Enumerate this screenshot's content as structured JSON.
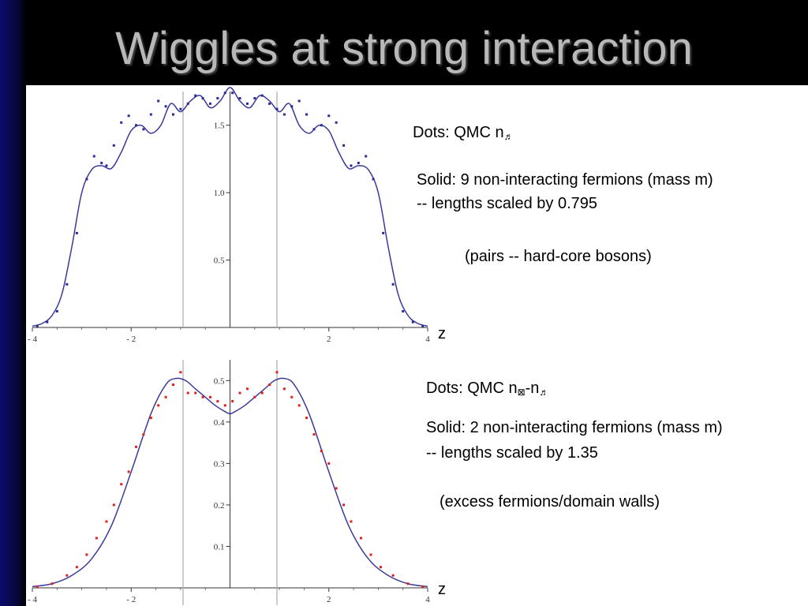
{
  "slide": {
    "title": "Wiggles at strong interaction"
  },
  "top_text": {
    "dots_prefix": "Dots: QMC n",
    "dots_symbol": "♬",
    "solid_line1": "Solid: 9 non-interacting fermions  (mass m)",
    "solid_line2": "-- lengths scaled by 0.795",
    "note": "(pairs -- hard-core bosons)",
    "axis_var": "z"
  },
  "bottom_text": {
    "dots_prefix": "Dots: QMC n",
    "dots_symbol1": "⊠",
    "dots_mid": "-n",
    "dots_symbol2": "♬",
    "solid_line1": "Solid: 2 non-interacting fermions (mass m)",
    "solid_line2": "-- lengths scaled by 1.35",
    "note": "(excess fermions/domain walls)",
    "axis_var": "z"
  },
  "chart_data": [
    {
      "type": "line",
      "xlim": [
        -4,
        4
      ],
      "ylim": [
        0,
        1.75
      ],
      "x_ticks": [
        -4,
        -2,
        2,
        4
      ],
      "x_tick_labels": [
        "- 4",
        "- 2",
        "2",
        "4"
      ],
      "y_ticks": [
        0.5,
        1.0,
        1.5
      ],
      "y_tick_labels": [
        "0.5",
        "1.0",
        "1.5"
      ],
      "vertical_lines": [
        -0.95,
        0.95
      ],
      "series": [
        {
          "style": "solid",
          "color": "#3a3a9a",
          "x": [
            -4.0,
            -3.8,
            -3.6,
            -3.4,
            -3.2,
            -3.0,
            -2.8,
            -2.6,
            -2.4,
            -2.2,
            -2.0,
            -1.8,
            -1.6,
            -1.4,
            -1.2,
            -1.0,
            -0.8,
            -0.6,
            -0.4,
            -0.2,
            0.0,
            0.2,
            0.4,
            0.6,
            0.8,
            1.0,
            1.2,
            1.4,
            1.6,
            1.8,
            2.0,
            2.2,
            2.4,
            2.6,
            2.8,
            3.0,
            3.2,
            3.4,
            3.6,
            3.8,
            4.0
          ],
          "y": [
            0.01,
            0.03,
            0.09,
            0.25,
            0.6,
            1.0,
            1.17,
            1.2,
            1.18,
            1.3,
            1.46,
            1.5,
            1.44,
            1.5,
            1.66,
            1.6,
            1.68,
            1.72,
            1.63,
            1.68,
            1.78,
            1.68,
            1.63,
            1.72,
            1.68,
            1.6,
            1.66,
            1.5,
            1.44,
            1.5,
            1.46,
            1.3,
            1.18,
            1.2,
            1.17,
            1.0,
            0.6,
            0.25,
            0.09,
            0.03,
            0.01
          ]
        },
        {
          "style": "dots",
          "color": "#2a2a9a",
          "x": [
            -3.9,
            -3.7,
            -3.5,
            -3.3,
            -3.1,
            -2.9,
            -2.75,
            -2.6,
            -2.5,
            -2.35,
            -2.2,
            -2.05,
            -1.9,
            -1.75,
            -1.6,
            -1.45,
            -1.3,
            -1.15,
            -1.0,
            -0.85,
            -0.7,
            -0.55,
            -0.4,
            -0.25,
            -0.1,
            0.05,
            0.2,
            0.35,
            0.5,
            0.65,
            0.8,
            0.95,
            1.1,
            1.25,
            1.4,
            1.55,
            1.7,
            1.85,
            2.0,
            2.15,
            2.3,
            2.45,
            2.6,
            2.75,
            2.9,
            3.1,
            3.3,
            3.5,
            3.7,
            3.9
          ],
          "y": [
            0.01,
            0.04,
            0.12,
            0.32,
            0.7,
            1.1,
            1.27,
            1.22,
            1.2,
            1.35,
            1.52,
            1.57,
            1.5,
            1.47,
            1.58,
            1.68,
            1.64,
            1.58,
            1.62,
            1.66,
            1.72,
            1.7,
            1.66,
            1.7,
            1.74,
            1.74,
            1.7,
            1.66,
            1.7,
            1.72,
            1.66,
            1.62,
            1.58,
            1.64,
            1.68,
            1.58,
            1.47,
            1.5,
            1.57,
            1.52,
            1.35,
            1.2,
            1.22,
            1.27,
            1.1,
            0.7,
            0.32,
            0.12,
            0.04,
            0.01
          ]
        }
      ]
    },
    {
      "type": "line",
      "xlim": [
        -4,
        4
      ],
      "ylim": [
        0,
        0.55
      ],
      "x_ticks": [
        -4,
        -2,
        2,
        4
      ],
      "x_tick_labels": [
        "- 4",
        "- 2",
        "2",
        "4"
      ],
      "y_ticks": [
        0.1,
        0.2,
        0.3,
        0.4,
        0.5
      ],
      "y_tick_labels": [
        "0.1",
        "0.2",
        "0.3",
        "0.4",
        "0.5"
      ],
      "vertical_lines": [
        -0.95,
        0.95
      ],
      "series": [
        {
          "style": "solid",
          "color": "#3a3a9a",
          "x": [
            -4.0,
            -3.6,
            -3.2,
            -2.8,
            -2.4,
            -2.0,
            -1.6,
            -1.3,
            -1.1,
            -0.9,
            -0.7,
            -0.5,
            -0.3,
            -0.1,
            0.0,
            0.1,
            0.3,
            0.5,
            0.7,
            0.9,
            1.1,
            1.3,
            1.6,
            2.0,
            2.4,
            2.8,
            3.2,
            3.6,
            4.0
          ],
          "y": [
            0.003,
            0.01,
            0.03,
            0.07,
            0.15,
            0.28,
            0.42,
            0.49,
            0.505,
            0.5,
            0.48,
            0.46,
            0.44,
            0.425,
            0.42,
            0.425,
            0.44,
            0.46,
            0.48,
            0.5,
            0.505,
            0.49,
            0.42,
            0.28,
            0.15,
            0.07,
            0.03,
            0.01,
            0.003
          ]
        },
        {
          "style": "dots",
          "color": "#e02020",
          "x": [
            -3.9,
            -3.6,
            -3.3,
            -3.1,
            -2.9,
            -2.7,
            -2.5,
            -2.35,
            -2.2,
            -2.05,
            -1.9,
            -1.75,
            -1.6,
            -1.45,
            -1.3,
            -1.15,
            -1.0,
            -0.85,
            -0.7,
            -0.55,
            -0.4,
            -0.25,
            -0.1,
            0.05,
            0.2,
            0.35,
            0.5,
            0.65,
            0.8,
            0.95,
            1.1,
            1.25,
            1.4,
            1.55,
            1.7,
            1.85,
            2.0,
            2.15,
            2.3,
            2.45,
            2.65,
            2.85,
            3.05,
            3.3,
            3.6,
            3.9
          ],
          "y": [
            0.003,
            0.01,
            0.03,
            0.05,
            0.08,
            0.12,
            0.16,
            0.2,
            0.25,
            0.28,
            0.34,
            0.37,
            0.41,
            0.44,
            0.46,
            0.49,
            0.52,
            0.47,
            0.47,
            0.46,
            0.46,
            0.45,
            0.44,
            0.45,
            0.47,
            0.48,
            0.46,
            0.47,
            0.49,
            0.52,
            0.48,
            0.46,
            0.44,
            0.41,
            0.37,
            0.33,
            0.3,
            0.24,
            0.2,
            0.16,
            0.12,
            0.08,
            0.05,
            0.03,
            0.01,
            0.003
          ]
        }
      ]
    }
  ]
}
